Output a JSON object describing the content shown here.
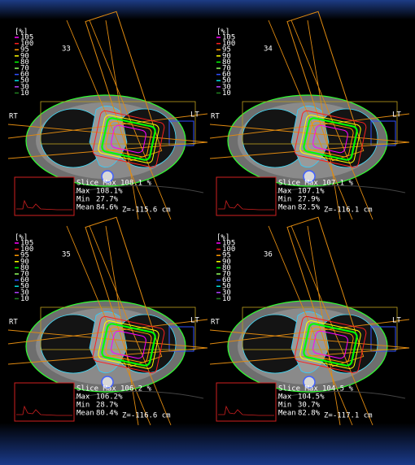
{
  "legend": {
    "unit": "[%]",
    "levels": [
      "105",
      "100",
      "95",
      "90",
      "80",
      "70",
      "60",
      "50",
      "30",
      "10"
    ],
    "colors": [
      "#ff00ff",
      "#ff2020",
      "#ff9900",
      "#ffff00",
      "#00ff00",
      "#90ff60",
      "#3050ff",
      "#00e0e0",
      "#b040ff",
      "#208020"
    ]
  },
  "side_labels": {
    "right": "RT",
    "left": "LT"
  },
  "stat_labels": {
    "slice_max": "Slice Max",
    "max": "Max",
    "min": "Min",
    "mean": "Mean"
  },
  "panels": [
    {
      "slice": "33",
      "slice_max": "108.1 %",
      "max": "108.1%",
      "min": "27.7%",
      "mean": "84.6%",
      "z": "Z=-115.6 cm"
    },
    {
      "slice": "34",
      "slice_max": "107.1 %",
      "max": "107.1%",
      "min": "27.9%",
      "mean": "82.5%",
      "z": "Z=-116.1 cm"
    },
    {
      "slice": "35",
      "slice_max": "106.2 %",
      "max": "106.2%",
      "min": "28.7%",
      "mean": "80.4%",
      "z": "Z=-116.6 cm"
    },
    {
      "slice": "36",
      "slice_max": "104.5 %",
      "max": "104.5%",
      "min": "30.7%",
      "mean": "82.8%",
      "z": "Z=-117.1 cm"
    }
  ]
}
